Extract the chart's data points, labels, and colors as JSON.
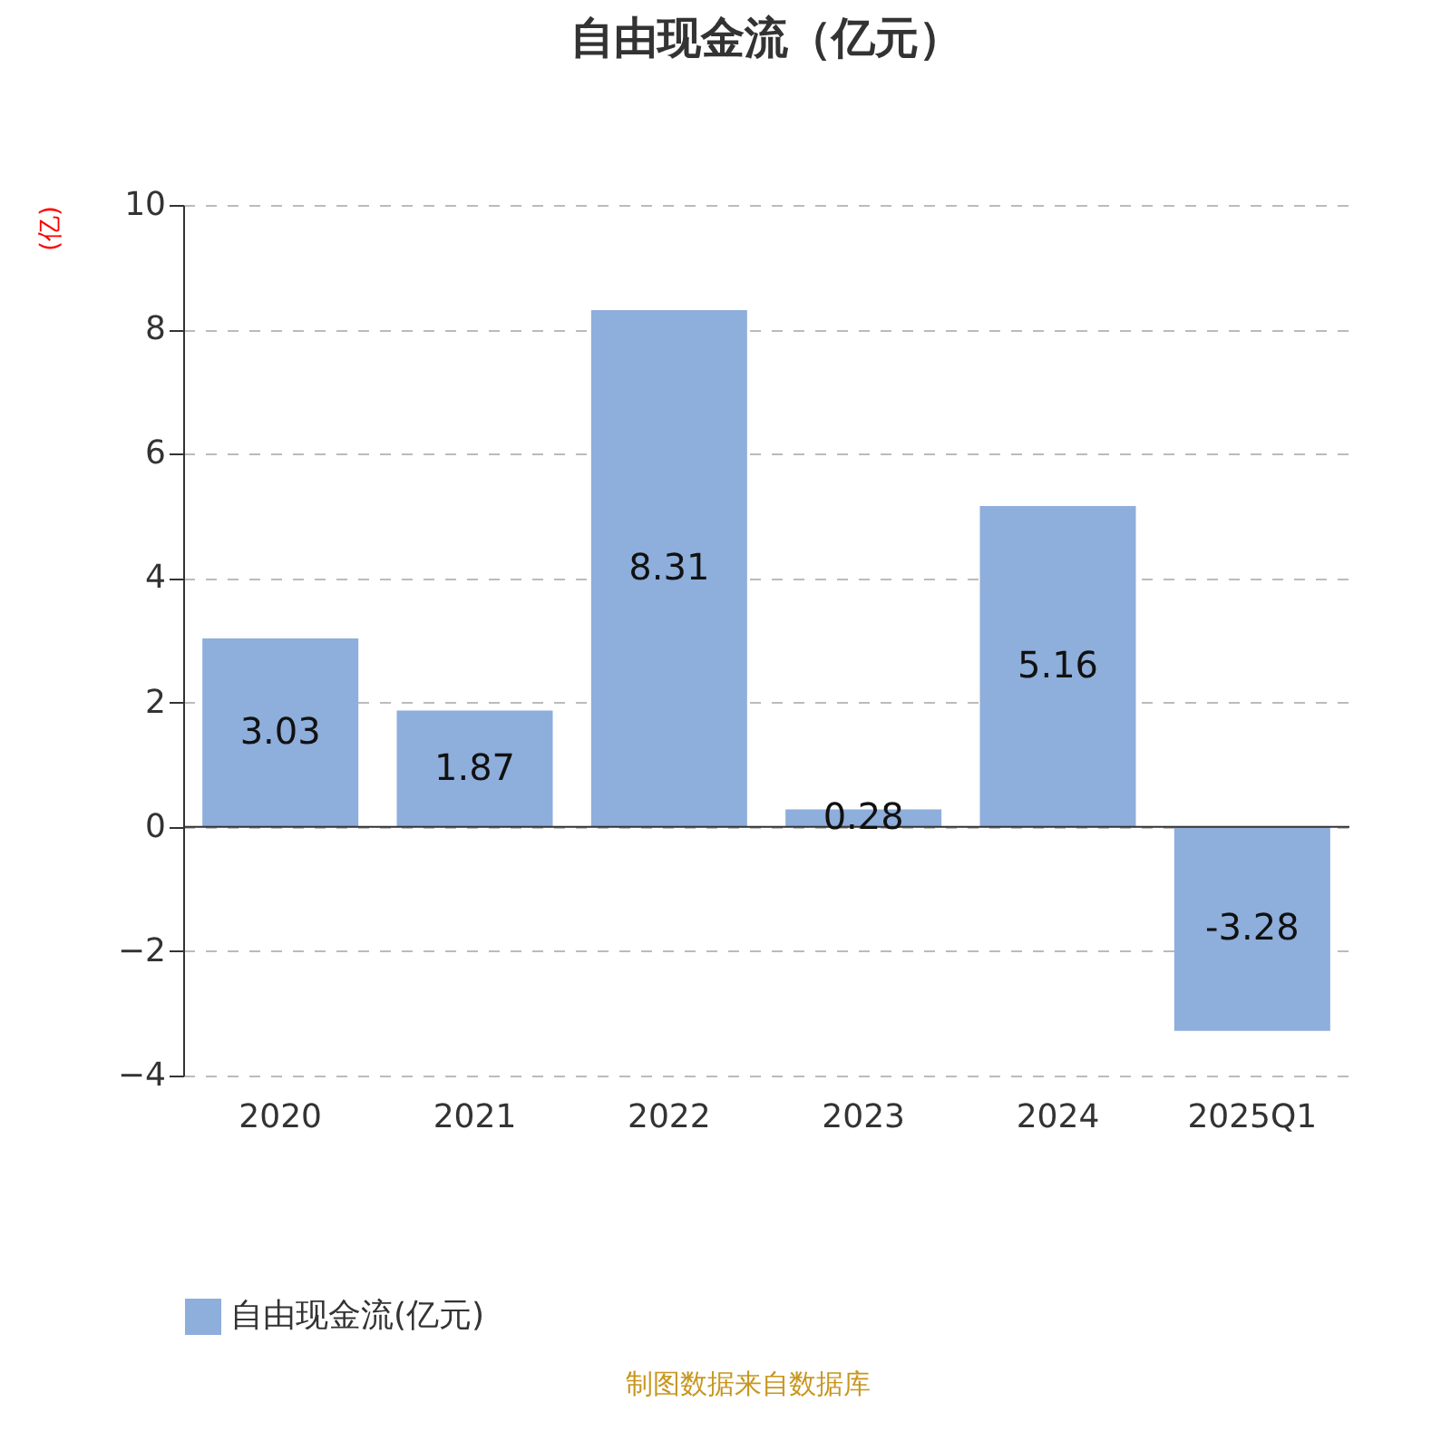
{
  "chart_data": {
    "type": "bar",
    "title": "自由现金流（亿元）",
    "categories": [
      "2020",
      "2021",
      "2022",
      "2023",
      "2024",
      "2025Q1"
    ],
    "series": [
      {
        "name": "自由现金流(亿元)",
        "color": "#8eaedb",
        "values": [
          3.03,
          1.87,
          8.31,
          0.28,
          5.16,
          -3.28
        ]
      }
    ],
    "ylabel": "(亿)",
    "ylim": [
      -4,
      10
    ],
    "yticks": [
      -4,
      -2,
      0,
      2,
      4,
      6,
      8,
      10
    ],
    "grid": "y",
    "legend": "bottom",
    "data_labels": true,
    "annotations": [
      "制图数据来自数据库"
    ]
  }
}
